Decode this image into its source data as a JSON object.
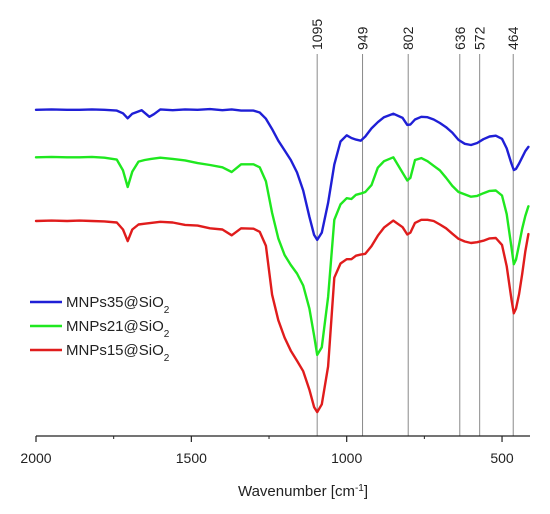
{
  "chart_data": {
    "type": "line",
    "xlabel": "Wavenumber [cm",
    "xlabel_sup": "-1",
    "xlabel_suffix": "]",
    "xlim": [
      2000,
      410
    ],
    "ylim": [
      0,
      1
    ],
    "x_reversed": true,
    "x_ticks": [
      2000,
      1500,
      1000,
      500
    ],
    "x_tick_labels": [
      "2000",
      "1500",
      "1000",
      "500"
    ],
    "y_axis_shown": false,
    "grid": false,
    "legend_position": "left",
    "peak_lines": [
      1095,
      949,
      802,
      636,
      572,
      464
    ],
    "peak_labels": [
      "1095",
      "949",
      "802",
      "636",
      "572",
      "464"
    ],
    "series": [
      {
        "name": "MNPs35@SiO",
        "name_sub": "2",
        "color": "#1f1fd6",
        "x": [
          2000,
          1950,
          1900,
          1860,
          1820,
          1780,
          1740,
          1720,
          1705,
          1690,
          1660,
          1635,
          1620,
          1600,
          1560,
          1520,
          1480,
          1440,
          1400,
          1370,
          1340,
          1300,
          1280,
          1260,
          1240,
          1220,
          1200,
          1180,
          1160,
          1140,
          1120,
          1105,
          1095,
          1080,
          1060,
          1040,
          1020,
          1000,
          985,
          970,
          955,
          940,
          920,
          900,
          880,
          850,
          820,
          805,
          795,
          780,
          760,
          740,
          720,
          700,
          680,
          660,
          640,
          620,
          600,
          580,
          560,
          540,
          520,
          500,
          485,
          470,
          462,
          455,
          445,
          435,
          425,
          415
        ],
        "y": [
          0.845,
          0.846,
          0.845,
          0.845,
          0.846,
          0.845,
          0.843,
          0.836,
          0.823,
          0.835,
          0.844,
          0.827,
          0.834,
          0.846,
          0.844,
          0.846,
          0.845,
          0.847,
          0.844,
          0.846,
          0.843,
          0.843,
          0.838,
          0.822,
          0.795,
          0.765,
          0.74,
          0.715,
          0.683,
          0.636,
          0.568,
          0.521,
          0.508,
          0.527,
          0.604,
          0.703,
          0.763,
          0.779,
          0.772,
          0.768,
          0.765,
          0.776,
          0.797,
          0.813,
          0.826,
          0.835,
          0.824,
          0.806,
          0.807,
          0.82,
          0.827,
          0.826,
          0.82,
          0.811,
          0.8,
          0.786,
          0.767,
          0.757,
          0.754,
          0.759,
          0.769,
          0.776,
          0.778,
          0.77,
          0.745,
          0.706,
          0.689,
          0.692,
          0.706,
          0.722,
          0.738,
          0.749
        ]
      },
      {
        "name": "MNPs21@SiO",
        "name_sub": "2",
        "color": "#1fe81f",
        "x": [
          2000,
          1950,
          1900,
          1860,
          1820,
          1780,
          1740,
          1720,
          1705,
          1690,
          1670,
          1650,
          1630,
          1600,
          1560,
          1520,
          1480,
          1440,
          1400,
          1370,
          1340,
          1300,
          1280,
          1260,
          1240,
          1220,
          1200,
          1180,
          1160,
          1140,
          1120,
          1105,
          1095,
          1080,
          1060,
          1040,
          1020,
          1000,
          985,
          970,
          955,
          940,
          920,
          900,
          880,
          850,
          820,
          805,
          795,
          780,
          760,
          740,
          720,
          700,
          680,
          660,
          640,
          620,
          600,
          580,
          560,
          540,
          520,
          500,
          485,
          470,
          462,
          455,
          445,
          435,
          425,
          415
        ],
        "y": [
          0.722,
          0.723,
          0.722,
          0.722,
          0.723,
          0.721,
          0.716,
          0.688,
          0.645,
          0.685,
          0.711,
          0.715,
          0.718,
          0.721,
          0.718,
          0.714,
          0.707,
          0.702,
          0.696,
          0.684,
          0.704,
          0.704,
          0.696,
          0.66,
          0.578,
          0.512,
          0.469,
          0.443,
          0.421,
          0.39,
          0.33,
          0.26,
          0.21,
          0.23,
          0.36,
          0.56,
          0.6,
          0.616,
          0.614,
          0.625,
          0.628,
          0.632,
          0.65,
          0.695,
          0.712,
          0.722,
          0.682,
          0.662,
          0.669,
          0.715,
          0.72,
          0.712,
          0.7,
          0.688,
          0.669,
          0.648,
          0.632,
          0.626,
          0.62,
          0.622,
          0.629,
          0.635,
          0.636,
          0.623,
          0.575,
          0.49,
          0.445,
          0.457,
          0.496,
          0.537,
          0.57,
          0.595
        ]
      },
      {
        "name": "MNPs15@SiO",
        "name_sub": "2",
        "color": "#e01c1c",
        "x": [
          2000,
          1950,
          1900,
          1860,
          1820,
          1780,
          1740,
          1720,
          1705,
          1690,
          1670,
          1650,
          1630,
          1600,
          1560,
          1520,
          1480,
          1440,
          1400,
          1370,
          1340,
          1300,
          1280,
          1260,
          1240,
          1220,
          1200,
          1180,
          1160,
          1140,
          1120,
          1105,
          1095,
          1080,
          1060,
          1040,
          1020,
          1000,
          985,
          970,
          955,
          940,
          920,
          900,
          880,
          850,
          820,
          805,
          795,
          780,
          760,
          740,
          720,
          700,
          680,
          660,
          640,
          620,
          600,
          580,
          560,
          540,
          520,
          500,
          485,
          470,
          462,
          455,
          445,
          435,
          425,
          415
        ],
        "y": [
          0.557,
          0.558,
          0.557,
          0.558,
          0.557,
          0.556,
          0.553,
          0.535,
          0.505,
          0.535,
          0.548,
          0.55,
          0.552,
          0.555,
          0.553,
          0.547,
          0.545,
          0.538,
          0.535,
          0.52,
          0.538,
          0.537,
          0.529,
          0.493,
          0.366,
          0.3,
          0.255,
          0.221,
          0.195,
          0.168,
          0.12,
          0.075,
          0.062,
          0.082,
          0.18,
          0.41,
          0.447,
          0.458,
          0.458,
          0.467,
          0.47,
          0.472,
          0.492,
          0.519,
          0.54,
          0.558,
          0.541,
          0.522,
          0.527,
          0.552,
          0.56,
          0.56,
          0.557,
          0.548,
          0.538,
          0.524,
          0.511,
          0.504,
          0.5,
          0.502,
          0.506,
          0.512,
          0.513,
          0.495,
          0.44,
          0.355,
          0.318,
          0.33,
          0.368,
          0.42,
          0.478,
          0.523
        ]
      }
    ]
  }
}
